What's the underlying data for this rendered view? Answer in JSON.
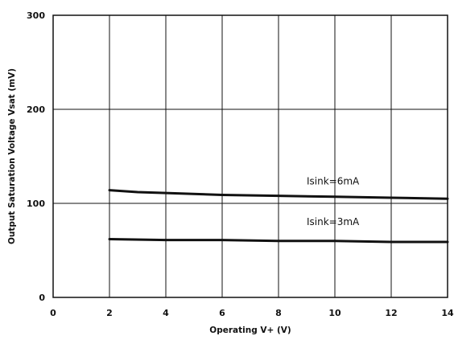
{
  "chart_data": {
    "type": "line",
    "xlabel": "Operating  V+ (V)",
    "ylabel": "Output Saturation Voltage  Vsat  (mV)",
    "xlim": [
      0,
      14
    ],
    "ylim": [
      0,
      300
    ],
    "x_ticks": [
      0,
      2,
      4,
      6,
      8,
      10,
      12,
      14
    ],
    "y_ticks": [
      0,
      100,
      200,
      300
    ],
    "x_tick_labels": [
      "0",
      "2",
      "4",
      "6",
      "8",
      "10",
      "12",
      "14"
    ],
    "y_tick_labels": [
      "0",
      "100",
      "200",
      "300"
    ],
    "y_grid_lines": [
      100,
      200
    ],
    "grid": true,
    "series": [
      {
        "name": "Isink=6mA",
        "x": [
          2,
          3,
          4,
          6,
          8,
          10,
          12,
          14
        ],
        "y": [
          114,
          112,
          111,
          109,
          108,
          107,
          106,
          105
        ]
      },
      {
        "name": "Isink=3mA",
        "x": [
          2,
          4,
          6,
          8,
          10,
          12,
          14
        ],
        "y": [
          62,
          61,
          61,
          60,
          60,
          59,
          59
        ]
      }
    ],
    "annotations": [
      {
        "text": "Isink=6mA",
        "x": 9.0,
        "y": 120
      },
      {
        "text": "Isink=3mA",
        "x": 9.0,
        "y": 77
      }
    ]
  }
}
